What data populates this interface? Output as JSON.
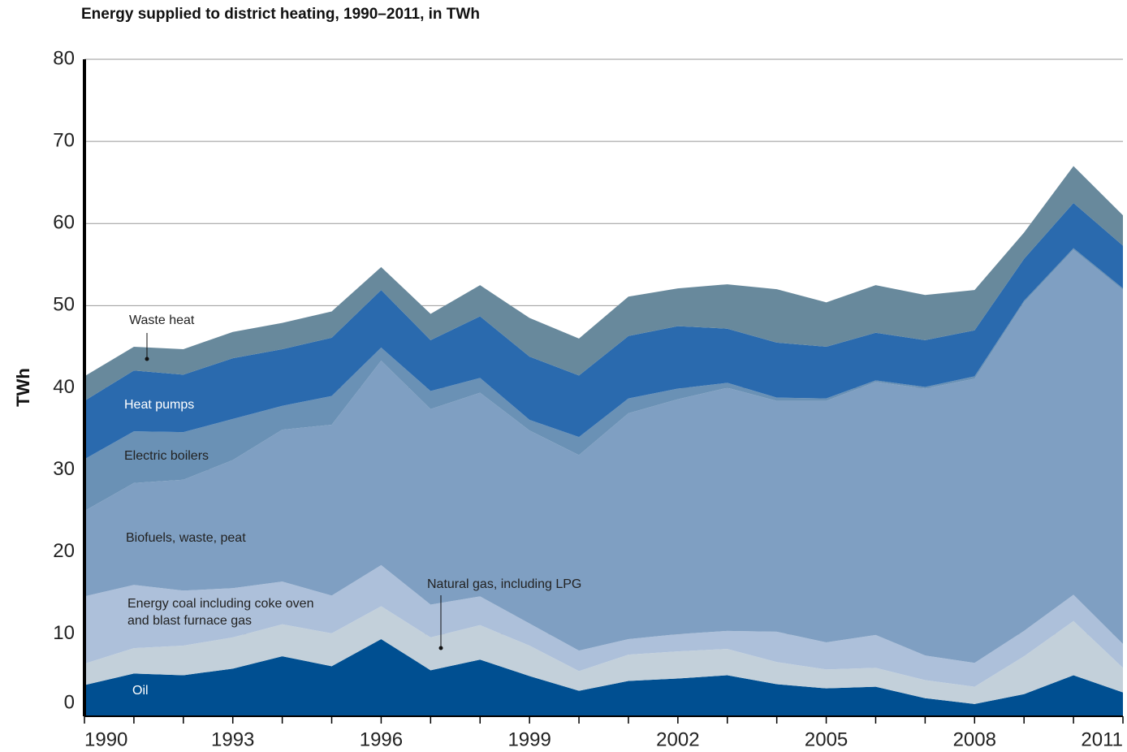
{
  "chart_data": {
    "type": "stacked-area",
    "title": "Energy supplied to district heating, 1990–2011, in TWh",
    "y_label": "TWh",
    "x": [
      1990,
      1991,
      1992,
      1993,
      1994,
      1995,
      1996,
      1997,
      1998,
      1999,
      2000,
      2001,
      2002,
      2003,
      2004,
      2005,
      2006,
      2007,
      2008,
      2009,
      2010,
      2011
    ],
    "xlim": [
      1990,
      2011
    ],
    "xticks": [
      1990,
      1993,
      1996,
      1999,
      2002,
      2005,
      2008,
      2011
    ],
    "ylim": [
      0,
      80
    ],
    "yticks": [
      0,
      10,
      20,
      30,
      40,
      50,
      60,
      70,
      80
    ],
    "grid": true,
    "series": [
      {
        "name": "Oil",
        "color": "#004f91",
        "values": [
          3.8,
          5.2,
          5.0,
          5.8,
          7.3,
          6.1,
          9.4,
          5.6,
          6.9,
          4.9,
          3.1,
          4.3,
          4.6,
          5.0,
          3.9,
          3.4,
          3.6,
          2.2,
          1.5,
          2.7,
          5.0,
          2.9
        ]
      },
      {
        "name": "Natural gas, including LPG",
        "color": "#c3d0da",
        "values": [
          2.6,
          3.1,
          3.6,
          3.8,
          3.9,
          4.0,
          4.0,
          4.0,
          4.2,
          3.7,
          2.4,
          3.2,
          3.3,
          3.2,
          2.7,
          2.3,
          2.3,
          2.2,
          2.1,
          4.6,
          6.6,
          3.0
        ]
      },
      {
        "name": "Energy coal including coke oven and blast furnace gas",
        "color": "#adc0da",
        "values": [
          8.2,
          7.7,
          6.7,
          6.0,
          5.2,
          4.6,
          5.0,
          4.0,
          3.5,
          2.7,
          2.5,
          1.9,
          2.1,
          2.2,
          3.7,
          3.3,
          4.0,
          3.0,
          2.9,
          3.1,
          3.2,
          2.9
        ]
      },
      {
        "name": "Biofuels, waste, peat",
        "color": "#7f9fc2",
        "values": [
          10.4,
          12.4,
          13.5,
          15.6,
          18.5,
          20.8,
          24.9,
          23.8,
          24.8,
          23.5,
          23.8,
          27.5,
          28.6,
          29.6,
          28.1,
          29.4,
          30.8,
          32.5,
          34.6,
          40.0,
          42.0,
          43.1
        ]
      },
      {
        "name": "Electric boilers",
        "color": "#6a91b5",
        "values": [
          6.3,
          6.3,
          5.8,
          5.0,
          2.9,
          3.5,
          1.6,
          2.2,
          1.8,
          1.3,
          2.2,
          1.8,
          1.3,
          0.6,
          0.4,
          0.3,
          0.2,
          0.2,
          0.3,
          0.2,
          0.2,
          0.2
        ]
      },
      {
        "name": "Heat pumps",
        "color": "#2a6aae",
        "values": [
          7.1,
          7.4,
          7.0,
          7.4,
          6.9,
          7.1,
          7.0,
          6.2,
          7.5,
          7.7,
          7.5,
          7.6,
          7.6,
          6.6,
          6.7,
          6.3,
          5.8,
          5.7,
          5.6,
          5.1,
          5.5,
          5.2
        ]
      },
      {
        "name": "Waste heat",
        "color": "#68899c",
        "values": [
          3.0,
          2.9,
          3.1,
          3.2,
          3.2,
          3.2,
          2.8,
          3.2,
          3.8,
          4.7,
          4.5,
          4.8,
          4.6,
          5.4,
          6.5,
          5.4,
          5.8,
          5.5,
          4.9,
          3.2,
          4.5,
          3.7
        ]
      }
    ]
  }
}
